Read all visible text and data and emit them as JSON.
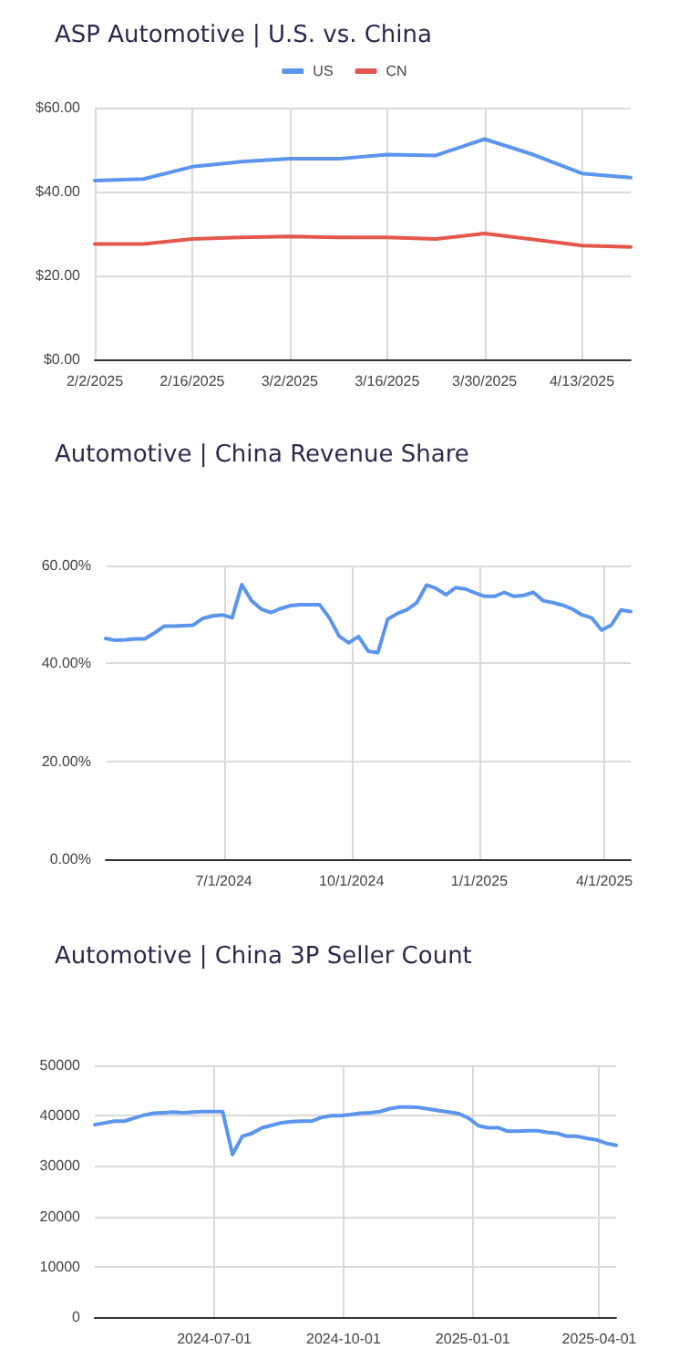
{
  "chart_data": [
    {
      "type": "line",
      "title": "ASP Automotive | U.S. vs. China",
      "legend": "top",
      "grid": true,
      "marker": "none",
      "x": [
        "2025-02-02",
        "2025-02-09",
        "2025-02-16",
        "2025-02-23",
        "2025-03-02",
        "2025-03-09",
        "2025-03-16",
        "2025-03-23",
        "2025-03-30",
        "2025-04-06",
        "2025-04-13",
        "2025-04-20"
      ],
      "series": [
        {
          "name": "US",
          "color": "#5b95ee",
          "values": [
            42.6,
            43.0,
            45.9,
            47.1,
            47.8,
            47.8,
            48.8,
            48.6,
            52.5,
            48.8,
            44.3,
            43.3
          ]
        },
        {
          "name": "CN",
          "color": "#e4574c",
          "values": [
            27.5,
            27.5,
            28.7,
            29.1,
            29.3,
            29.1,
            29.1,
            28.7,
            30.0,
            28.6,
            27.1,
            26.8
          ]
        }
      ],
      "xlim": [
        "2025-02-02",
        "2025-04-20"
      ],
      "xticks": [
        {
          "value": "2025-02-02",
          "label": "2/2/2025"
        },
        {
          "value": "2025-02-16",
          "label": "2/16/2025"
        },
        {
          "value": "2025-03-02",
          "label": "3/2/2025"
        },
        {
          "value": "2025-03-16",
          "label": "3/16/2025"
        },
        {
          "value": "2025-03-30",
          "label": "3/30/2025"
        },
        {
          "value": "2025-04-13",
          "label": "4/13/2025"
        }
      ],
      "ylim": [
        0,
        60
      ],
      "yticks": [
        {
          "value": 0,
          "label": "$0.00"
        },
        {
          "value": 20,
          "label": "$20.00"
        },
        {
          "value": 40,
          "label": "$40.00"
        },
        {
          "value": 60,
          "label": "$60.00"
        }
      ]
    },
    {
      "type": "line",
      "title": "Automotive | China Revenue Share",
      "grid": true,
      "marker": "none",
      "x": [
        "2024-04-07",
        "2024-04-14",
        "2024-04-21",
        "2024-04-28",
        "2024-05-05",
        "2024-05-12",
        "2024-05-19",
        "2024-05-26",
        "2024-06-02",
        "2024-06-09",
        "2024-06-16",
        "2024-06-23",
        "2024-06-30",
        "2024-07-07",
        "2024-07-14",
        "2024-07-21",
        "2024-07-28",
        "2024-08-04",
        "2024-08-11",
        "2024-08-18",
        "2024-08-25",
        "2024-09-01",
        "2024-09-08",
        "2024-09-15",
        "2024-09-22",
        "2024-09-29",
        "2024-10-06",
        "2024-10-13",
        "2024-10-20",
        "2024-10-27",
        "2024-11-03",
        "2024-11-10",
        "2024-11-17",
        "2024-11-24",
        "2024-12-01",
        "2024-12-08",
        "2024-12-15",
        "2024-12-22",
        "2024-12-29",
        "2025-01-05",
        "2025-01-12",
        "2025-01-19",
        "2025-01-26",
        "2025-02-02",
        "2025-02-09",
        "2025-02-16",
        "2025-02-23",
        "2025-03-02",
        "2025-03-09",
        "2025-03-16",
        "2025-03-23",
        "2025-03-30",
        "2025-04-06",
        "2025-04-13",
        "2025-04-20"
      ],
      "series": [
        {
          "color": "#5b95ee",
          "values": [
            45.1,
            44.7,
            44.8,
            45.0,
            45.0,
            46.2,
            47.6,
            47.6,
            47.7,
            47.8,
            49.2,
            49.7,
            49.9,
            49.3,
            56.1,
            52.8,
            51.1,
            50.4,
            51.2,
            51.8,
            52.0,
            52.0,
            52.0,
            49.3,
            45.6,
            44.2,
            45.5,
            42.5,
            42.2,
            49.0,
            50.2,
            51.0,
            52.4,
            56.0,
            55.3,
            54.0,
            55.5,
            55.2,
            54.4,
            53.7,
            53.7,
            54.5,
            53.7,
            53.9,
            54.5,
            52.8,
            52.4,
            51.9,
            51.1,
            49.9,
            49.3,
            46.8,
            47.8,
            50.9,
            50.6
          ]
        }
      ],
      "xlim": [
        "2024-04-07",
        "2025-04-20"
      ],
      "xticks": [
        {
          "value": "2024-07-01",
          "label": "7/1/2024"
        },
        {
          "value": "2024-10-01",
          "label": "10/1/2024"
        },
        {
          "value": "2025-01-01",
          "label": "1/1/2025"
        },
        {
          "value": "2025-04-01",
          "label": "4/1/2025"
        }
      ],
      "ylim": [
        0,
        60
      ],
      "yticks": [
        {
          "value": 0,
          "label": "0.00%"
        },
        {
          "value": 20,
          "label": "20.00%"
        },
        {
          "value": 40,
          "label": "40.00%"
        },
        {
          "value": 60,
          "label": "60.00%"
        }
      ]
    },
    {
      "type": "line",
      "title": "Automotive | China 3P Seller Count",
      "grid": true,
      "marker": "none",
      "x": [
        "2024-04-07",
        "2024-04-14",
        "2024-04-21",
        "2024-04-28",
        "2024-05-05",
        "2024-05-12",
        "2024-05-19",
        "2024-05-26",
        "2024-06-02",
        "2024-06-09",
        "2024-06-16",
        "2024-06-23",
        "2024-06-30",
        "2024-07-07",
        "2024-07-14",
        "2024-07-21",
        "2024-07-28",
        "2024-08-04",
        "2024-08-11",
        "2024-08-18",
        "2024-08-25",
        "2024-09-01",
        "2024-09-08",
        "2024-09-15",
        "2024-09-22",
        "2024-09-29",
        "2024-10-06",
        "2024-10-13",
        "2024-10-20",
        "2024-10-27",
        "2024-11-03",
        "2024-11-10",
        "2024-11-17",
        "2024-11-24",
        "2024-12-01",
        "2024-12-08",
        "2024-12-15",
        "2024-12-22",
        "2024-12-29",
        "2025-01-05",
        "2025-01-12",
        "2025-01-19",
        "2025-01-26",
        "2025-02-02",
        "2025-02-09",
        "2025-02-16",
        "2025-02-23",
        "2025-03-02",
        "2025-03-09",
        "2025-03-16",
        "2025-03-23",
        "2025-03-30",
        "2025-04-06",
        "2025-04-13"
      ],
      "series": [
        {
          "color": "#5b95ee",
          "values": [
            38200,
            38550,
            38900,
            38900,
            39500,
            40100,
            40500,
            40600,
            40700,
            40600,
            40700,
            40800,
            40800,
            40800,
            32300,
            35900,
            36500,
            37600,
            38100,
            38600,
            38800,
            38900,
            38900,
            39600,
            40000,
            40000,
            40200,
            40500,
            40600,
            40800,
            41400,
            41700,
            41700,
            41600,
            41300,
            41000,
            40700,
            40400,
            39500,
            38000,
            37600,
            37600,
            36900,
            36900,
            37000,
            37000,
            36700,
            36500,
            35900,
            35900,
            35500,
            35200,
            34500,
            34100
          ]
        }
      ],
      "xlim": [
        "2024-04-07",
        "2025-04-13"
      ],
      "xticks": [
        {
          "value": "2024-07-01",
          "label": "2024-07-01"
        },
        {
          "value": "2024-10-01",
          "label": "2024-10-01"
        },
        {
          "value": "2025-01-01",
          "label": "2025-01-01"
        },
        {
          "value": "2025-04-01",
          "label": "2025-04-01"
        }
      ],
      "ylim": [
        0,
        50000
      ],
      "yticks": [
        0,
        10000,
        20000,
        30000,
        40000,
        50000
      ]
    }
  ]
}
